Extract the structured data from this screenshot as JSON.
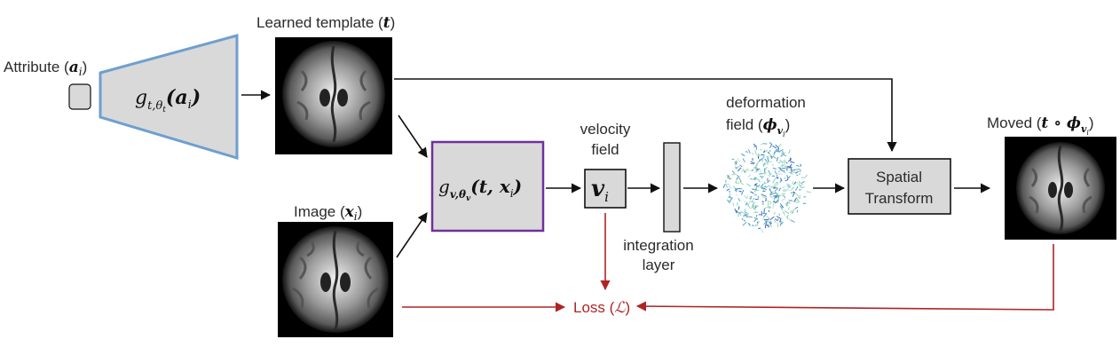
{
  "labels": {
    "attribute": "Attribute (",
    "attribute_sym": "a",
    "attribute_sub": "i",
    "attribute_close": ")",
    "learned_template": "Learned template (",
    "learned_template_sym": "t",
    "learned_template_close": ")",
    "image": "Image (",
    "image_sym": "x",
    "image_sub": "i",
    "image_close": ")",
    "velocity_line1": "velocity",
    "velocity_line2": "field",
    "velocity_sym": "v",
    "velocity_sub": "i",
    "integration_line1": "integration",
    "integration_line2": "layer",
    "deformation_line1": "deformation",
    "deformation_line2": "field (",
    "deformation_sym": "ϕ",
    "deformation_sub": "v",
    "deformation_subsub": "i",
    "deformation_close": ")",
    "spatial_line1": "Spatial",
    "spatial_line2": "Transform",
    "moved": "Moved (",
    "moved_sym": "t ∘ ϕ",
    "moved_sub": "v",
    "moved_subsub": "i",
    "moved_close": ")",
    "loss": "Loss (",
    "loss_sym": "ℒ",
    "loss_close": ")",
    "gt_main": "g",
    "gt_sub": "t,θ",
    "gt_subsub": "t",
    "gt_arg": "(a",
    "gt_arg_sub": "i",
    "gt_arg_close": ")",
    "gv_main": "g",
    "gv_sub": "v,θ",
    "gv_subsub": "v",
    "gv_arg": "(t, x",
    "gv_arg_sub": "i",
    "gv_arg_close": ")"
  },
  "colors": {
    "box_fill": "#d9d9d9",
    "generator_t_border": "#6f9fcf",
    "generator_v_border": "#7030a0",
    "loss_arrow": "#b02323",
    "arrow": "#111111"
  }
}
